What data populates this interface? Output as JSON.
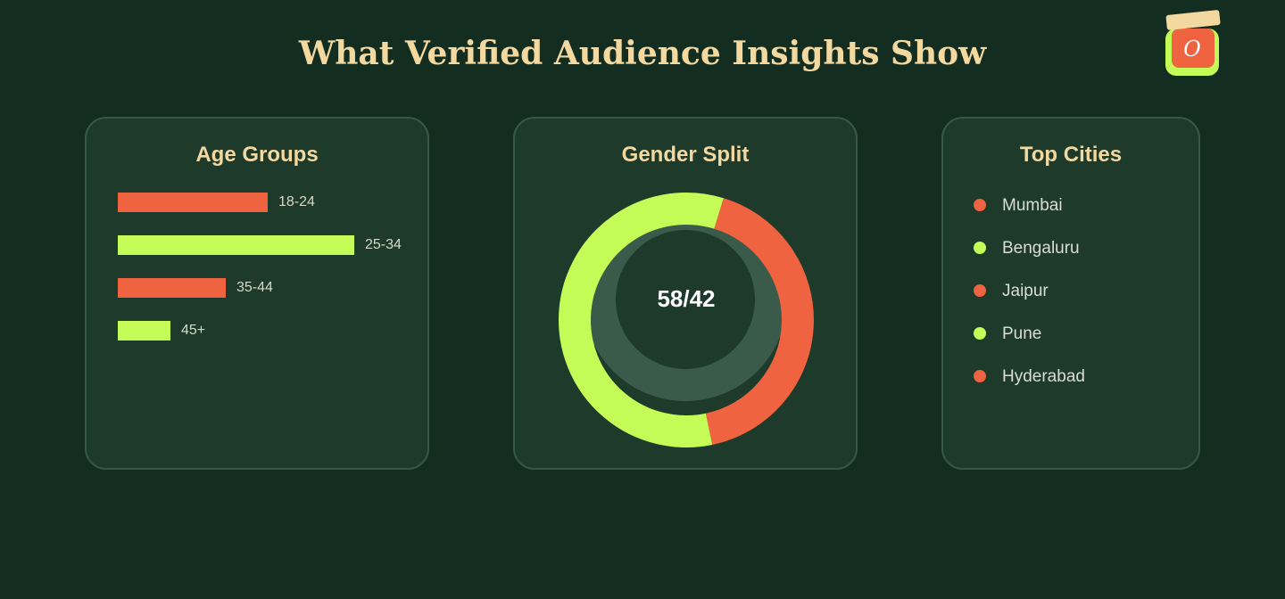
{
  "header": {
    "title": "What Verified Audience Insights Show",
    "logo_letter": "O"
  },
  "colors": {
    "background": "#132e21",
    "card": "#1d3a2b",
    "accent_orange": "#ef6340",
    "accent_lime": "#c5fb56",
    "title": "#f3d8a0"
  },
  "age_groups": {
    "title": "Age Groups",
    "items": [
      {
        "label": "18-24",
        "share": 0.57,
        "color": "#ef6340"
      },
      {
        "label": "25-34",
        "share": 0.9,
        "color": "#c5fb56"
      },
      {
        "label": "35-44",
        "share": 0.41,
        "color": "#ef6340"
      },
      {
        "label": "45+",
        "share": 0.2,
        "color": "#c5fb56"
      }
    ]
  },
  "gender": {
    "title": "Gender Split",
    "center_label": "58/42",
    "segments": [
      {
        "value": 58,
        "color": "#c5fb56"
      },
      {
        "value": 42,
        "color": "#ef6340"
      }
    ]
  },
  "cities": {
    "title": "Top Cities",
    "items": [
      {
        "name": "Mumbai",
        "color": "#ef6340"
      },
      {
        "name": "Bengaluru",
        "color": "#c5fb56"
      },
      {
        "name": "Jaipur",
        "color": "#ef6340"
      },
      {
        "name": "Pune",
        "color": "#c5fb56"
      },
      {
        "name": "Hyderabad",
        "color": "#ef6340"
      }
    ]
  }
}
